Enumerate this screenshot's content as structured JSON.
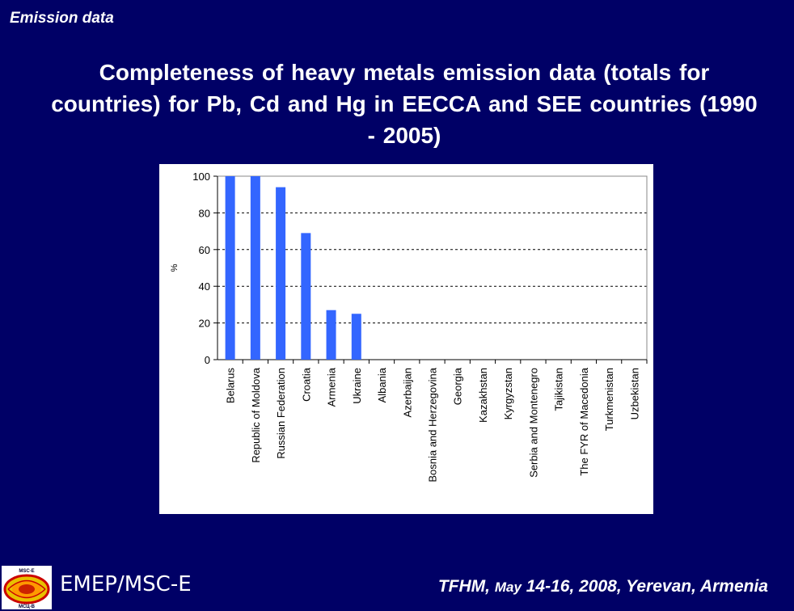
{
  "header": {
    "section_label": "Emission data",
    "title": "Completeness of heavy metals emission data (totals for countries) for Pb, Cd and Hg in EECCA and SEE countries (1990 - 2005)"
  },
  "footer": {
    "org": "EMEP/MSC-E",
    "event_part1": "TFHM, ",
    "event_month": "May",
    "event_part2": " 14-16, 2008, Yerevan, Armenia"
  },
  "logo": {
    "icon": "msc-e-globe-logo",
    "text_top": "MSC-E",
    "text_bottom": "МСЦ-В"
  },
  "colors": {
    "background": "#000066",
    "bar": "#3366FF"
  },
  "chart_data": {
    "type": "bar",
    "title": "",
    "xlabel": "",
    "ylabel": "%",
    "ylim": [
      0,
      100
    ],
    "yticks": [
      0,
      20,
      40,
      60,
      80,
      100
    ],
    "grid": "horizontal dashed",
    "legend": "none",
    "categories": [
      "Belarus",
      "Republic of Moldova",
      "Russian Federation",
      "Croatia",
      "Armenia",
      "Ukraine",
      "Albania",
      "Azerbaijan",
      "Bosnia and Herzegovina",
      "Georgia",
      "Kazakhstan",
      "Kyrgyzstan",
      "Serbia and Montenegro",
      "Tajikistan",
      "The FYR of Macedonia",
      "Turkmenistan",
      "Uzbekistan"
    ],
    "values": [
      100,
      100,
      94,
      69,
      27,
      25,
      0,
      0,
      0,
      0,
      0,
      0,
      0,
      0,
      0,
      0,
      0
    ]
  }
}
